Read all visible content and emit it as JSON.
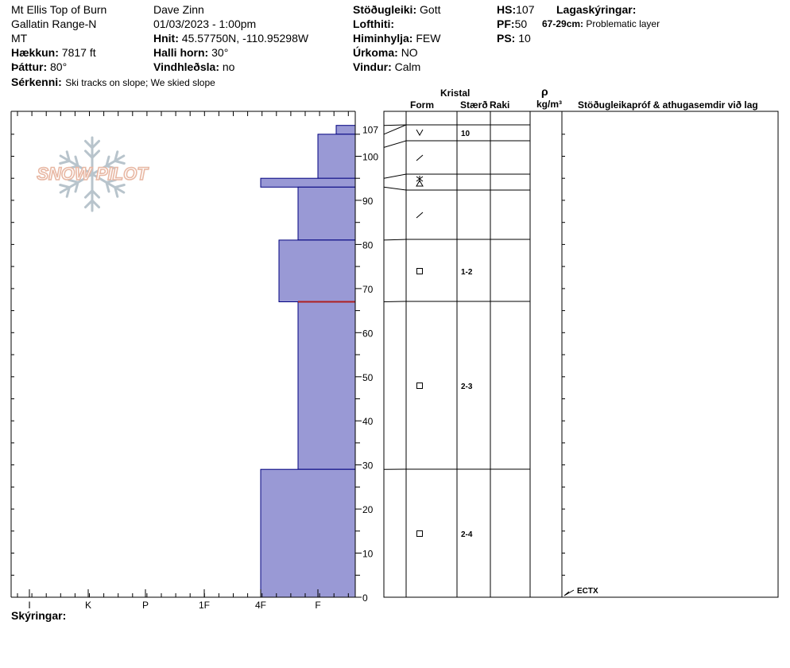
{
  "header": {
    "col1": [
      "Mt Ellis Top of Burn",
      "Gallatin Range-N",
      "MT"
    ],
    "elevation_label": "Hækkun:",
    "elevation_value": "7817 ft",
    "aspect_label": "Þáttur:",
    "aspect_value": "80°",
    "observer": "Dave Zinn",
    "datetime": "01/03/2023 - 1:00pm",
    "coords_label": "Hnit:",
    "coords_value": "45.57750N, -110.95298W",
    "slope_label": "Halli horn:",
    "slope_value": "30°",
    "wind_loading_label": "Vindhleðsla:",
    "wind_loading_value": "no",
    "stability_label": "Stöðugleiki:",
    "stability_value": "Gott",
    "air_temp_label": "Lofthiti:",
    "air_temp_value": "",
    "sky_label": "Himinhylja:",
    "sky_value": "FEW",
    "precip_label": "Úrkoma:",
    "precip_value": "NO",
    "wind_label": "Vindur:",
    "wind_value": "Calm",
    "hs_label": "HS:",
    "hs_value": "107",
    "pf_label": "PF:",
    "pf_value": "50",
    "ps_label": "PS:",
    "ps_value": "10",
    "layer_notes_label": "Lagaskýringar:",
    "layer_note_range": "67-29cm:",
    "layer_note_text": "Problematic layer",
    "features_label": "Sérkenni:",
    "features_value": "Ski tracks on slope; We skied slope"
  },
  "logo_text": "SNOW PILOT",
  "table": {
    "kristal": "Kristal",
    "form": "Form",
    "size": "Stærð",
    "moisture": "Raki",
    "rho": "ρ",
    "density_unit": "kg/m³",
    "tests_header": "Stöðugleikapróf & athugasemdir við lag"
  },
  "footer": {
    "comments_label": "Skýringar:"
  },
  "colors": {
    "layer_fill": "#9999d5",
    "layer_stroke": "#00007f",
    "problem_line": "#b02020"
  },
  "chart_data": {
    "type": "bar",
    "title": "",
    "ylabel": "",
    "xlabel": "",
    "y_range": [
      0,
      107
    ],
    "y_ticks": [
      0,
      10,
      20,
      30,
      40,
      50,
      60,
      70,
      80,
      90,
      100
    ],
    "y_top_label": "107",
    "hardness_scale": [
      "I",
      "K",
      "P",
      "1F",
      "4F",
      "F"
    ],
    "layers": [
      {
        "top": 107,
        "bottom": 105,
        "hardness": "F-"
      },
      {
        "top": 105,
        "bottom": 95,
        "hardness": "F"
      },
      {
        "top": 95,
        "bottom": 93,
        "hardness": "4F"
      },
      {
        "top": 93,
        "bottom": 81,
        "hardness": "F+"
      },
      {
        "top": 81,
        "bottom": 67,
        "hardness": "4F-"
      },
      {
        "top": 67,
        "bottom": 29,
        "hardness": "F+"
      },
      {
        "top": 29,
        "bottom": 0,
        "hardness": "4F"
      }
    ],
    "problem_layer_depth": 67,
    "crystal_layers": [
      {
        "top": 107,
        "bottom": 105,
        "form": "",
        "size": ""
      },
      {
        "top": 105,
        "bottom": 102,
        "form": "surface_hoar",
        "size": "10"
      },
      {
        "top": 102,
        "bottom": 95,
        "form": "decomposing",
        "size": ""
      },
      {
        "top": 95,
        "bottom": 93,
        "form": "mixed",
        "size": ""
      },
      {
        "top": 93,
        "bottom": 81,
        "form": "decomposing",
        "size": ""
      },
      {
        "top": 81,
        "bottom": 67,
        "form": "faceted",
        "size": "1-2"
      },
      {
        "top": 67,
        "bottom": 29,
        "form": "faceted",
        "size": "2-3"
      },
      {
        "top": 29,
        "bottom": 0,
        "form": "faceted",
        "size": "2-4"
      }
    ],
    "test_results": [
      {
        "depth": 0,
        "label": "ECTX"
      }
    ]
  }
}
